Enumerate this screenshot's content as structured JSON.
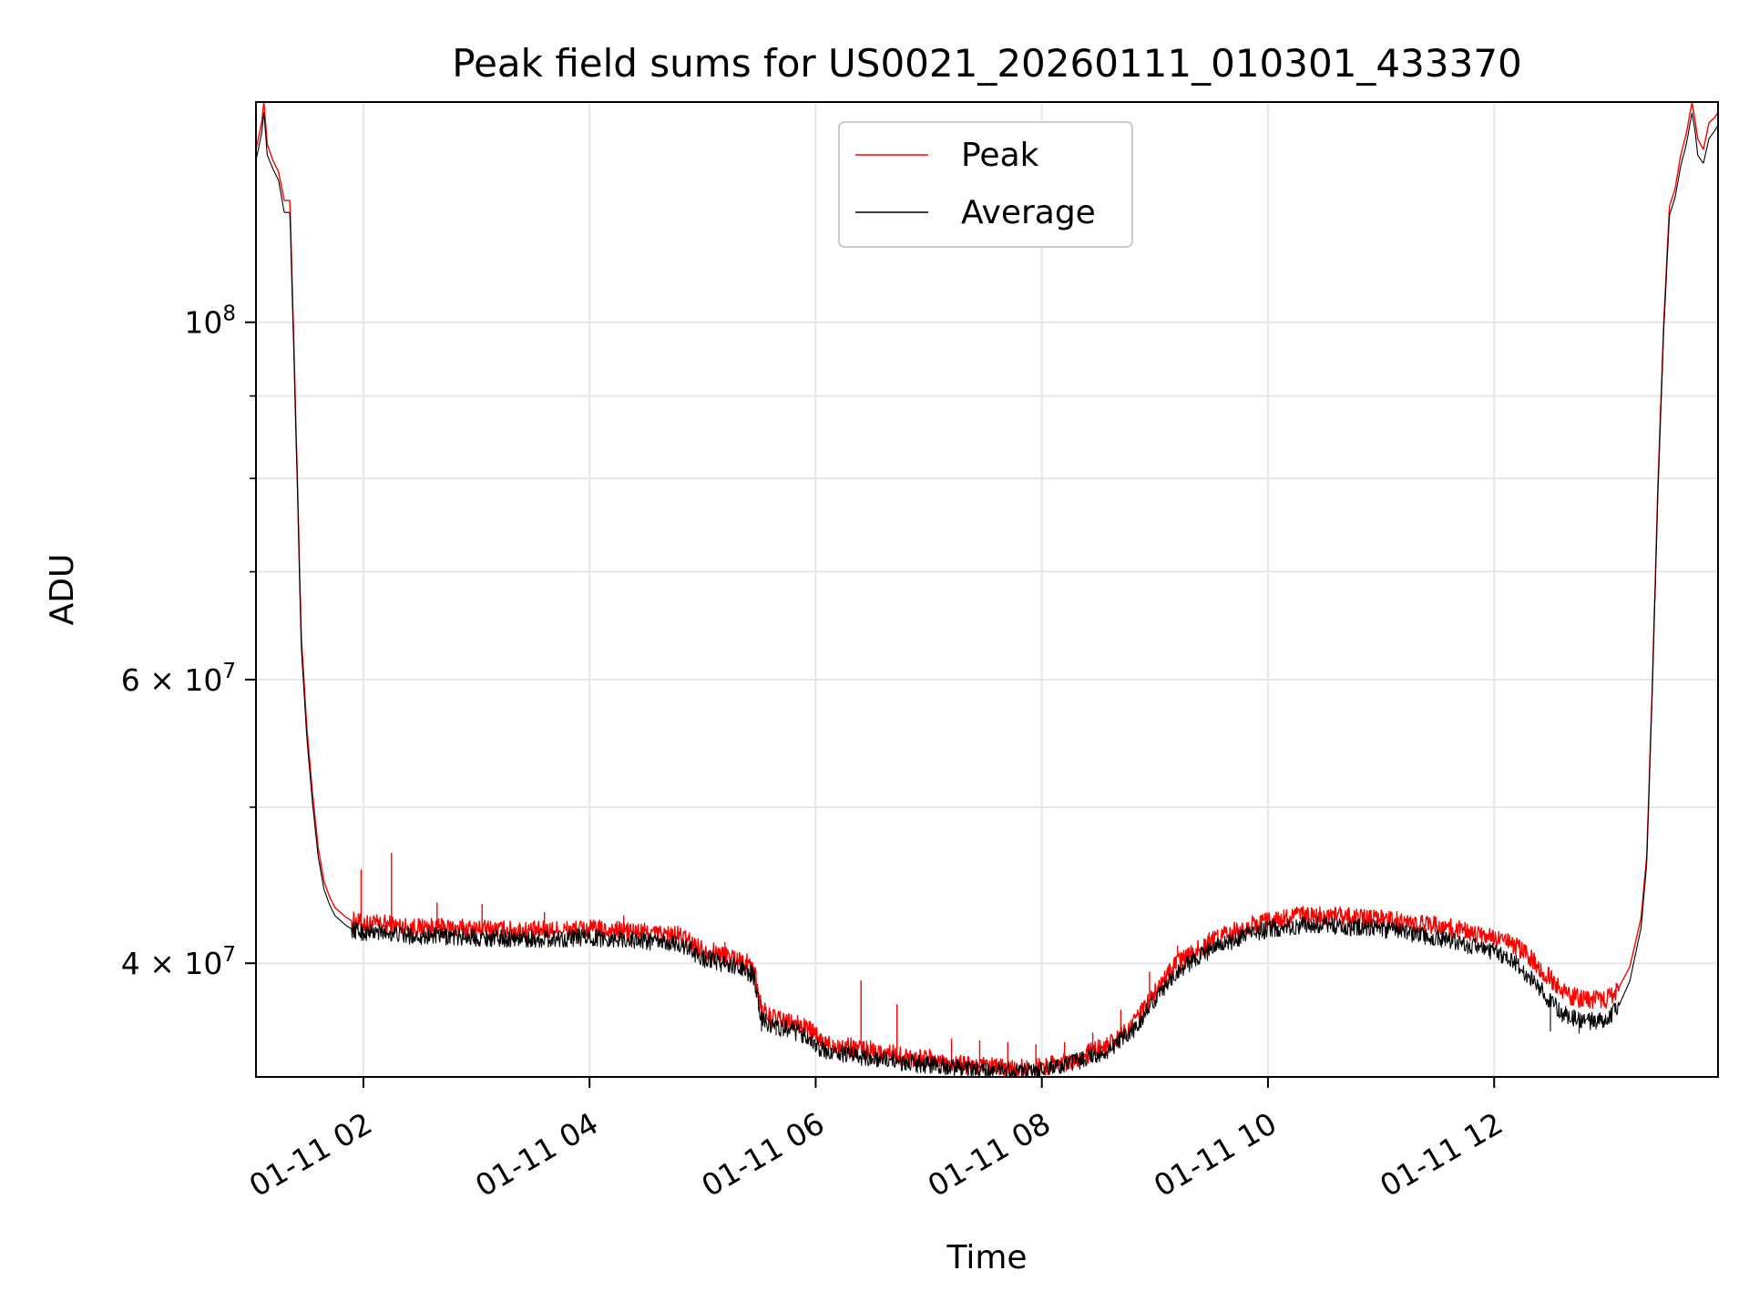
{
  "chart_data": {
    "type": "line",
    "title": "Peak field sums for US0021_20260111_010301_433370",
    "xlabel": "Time",
    "ylabel": "ADU",
    "y_scale": "log",
    "x_unit": "hours",
    "xlim": [
      1.05,
      13.98
    ],
    "ylim": [
      34000000,
      137000000
    ],
    "x_ticks": [
      {
        "value": 2,
        "label": "01-11 02"
      },
      {
        "value": 4,
        "label": "01-11 04"
      },
      {
        "value": 6,
        "label": "01-11 06"
      },
      {
        "value": 8,
        "label": "01-11 08"
      },
      {
        "value": 10,
        "label": "01-11 10"
      },
      {
        "value": 12,
        "label": "01-11 12"
      }
    ],
    "y_ticks": [
      {
        "value": 40000000,
        "label_base": "4 × 10",
        "label_exp": "7"
      },
      {
        "value": 60000000,
        "label_base": "6 × 10",
        "label_exp": "7"
      },
      {
        "value": 100000000,
        "label_base": "10",
        "label_exp": "8"
      }
    ],
    "y_minor_ticks": [
      50000000,
      70000000,
      80000000,
      90000000
    ],
    "grid": true,
    "legend_position": "top-center",
    "series": [
      {
        "name": "Peak",
        "color": "#ff0000",
        "x": [
          1.05,
          1.1,
          1.12,
          1.15,
          1.2,
          1.25,
          1.3,
          1.35,
          1.38,
          1.42,
          1.45,
          1.5,
          1.55,
          1.6,
          1.65,
          1.7,
          1.75,
          1.8,
          1.85,
          1.9,
          2.0,
          2.2,
          2.4,
          2.6,
          3.0,
          3.5,
          4.0,
          4.5,
          4.8,
          5.0,
          5.3,
          5.45,
          5.52,
          5.6,
          5.8,
          5.95,
          6.05,
          6.4,
          6.8,
          7.0,
          7.3,
          7.5,
          7.8,
          8.0,
          8.3,
          8.6,
          8.8,
          9.0,
          9.2,
          9.5,
          9.8,
          10.0,
          10.3,
          10.6,
          11.0,
          11.5,
          11.8,
          12.0,
          12.2,
          12.4,
          12.6,
          12.8,
          13.0,
          13.1,
          13.2,
          13.3,
          13.35,
          13.4,
          13.45,
          13.5,
          13.55,
          13.6,
          13.65,
          13.7,
          13.75,
          13.78,
          13.8,
          13.85,
          13.9,
          13.95,
          13.98
        ],
        "y": [
          128000000,
          133000000,
          137000000,
          129000000,
          126000000,
          124000000,
          119000000,
          119000000,
          100000000,
          78000000,
          64000000,
          56000000,
          51000000,
          47200000,
          45000000,
          44000000,
          43300000,
          43000000,
          42700000,
          42500000,
          42300000,
          42300000,
          42100000,
          42100000,
          42000000,
          41900000,
          42000000,
          41800000,
          41600000,
          40800000,
          40300000,
          39800000,
          37500000,
          37000000,
          36700000,
          36400000,
          35700000,
          35400000,
          35000000,
          34900000,
          34600000,
          34500000,
          34400000,
          34500000,
          34900000,
          35600000,
          36600000,
          38400000,
          40000000,
          41300000,
          42100000,
          42500000,
          42800000,
          42800000,
          42600000,
          42200000,
          41800000,
          41400000,
          41000000,
          39800000,
          38400000,
          37900000,
          38000000,
          38600000,
          39800000,
          42700000,
          46700000,
          60000000,
          80000000,
          100000000,
          118000000,
          121000000,
          127000000,
          131000000,
          137000000,
          133000000,
          130000000,
          128000000,
          133000000,
          134000000,
          135000000
        ],
        "spikes": [
          [
            1.98,
            45700000
          ],
          [
            2.25,
            46800000
          ],
          [
            2.65,
            43600000
          ],
          [
            3.05,
            43500000
          ],
          [
            3.6,
            43000000
          ],
          [
            4.3,
            42800000
          ],
          [
            5.2,
            41200000
          ],
          [
            6.4,
            39000000
          ],
          [
            6.72,
            37700000
          ],
          [
            7.2,
            35900000
          ],
          [
            7.45,
            35800000
          ],
          [
            7.7,
            35700000
          ],
          [
            7.95,
            35600000
          ],
          [
            8.2,
            35700000
          ],
          [
            8.45,
            36200000
          ],
          [
            8.7,
            37400000
          ],
          [
            8.95,
            39500000
          ],
          [
            9.2,
            41000000
          ]
        ],
        "spike_min_x": 1.9,
        "spike_max_x": 13.1,
        "spike_amp": 0.012,
        "line_width": 1.4
      },
      {
        "name": "Average",
        "color": "#000000",
        "x": [
          1.05,
          1.1,
          1.12,
          1.15,
          1.2,
          1.25,
          1.3,
          1.35,
          1.38,
          1.42,
          1.45,
          1.5,
          1.55,
          1.6,
          1.65,
          1.7,
          1.75,
          1.8,
          1.85,
          1.9,
          2.0,
          2.2,
          2.4,
          2.6,
          3.0,
          3.5,
          4.0,
          4.5,
          4.8,
          5.0,
          5.3,
          5.45,
          5.52,
          5.6,
          5.8,
          5.95,
          6.05,
          6.4,
          6.8,
          7.0,
          7.3,
          7.5,
          7.8,
          8.0,
          8.3,
          8.6,
          8.8,
          9.0,
          9.2,
          9.5,
          9.8,
          10.0,
          10.3,
          10.6,
          11.0,
          11.5,
          11.8,
          12.0,
          12.2,
          12.4,
          12.6,
          12.8,
          13.0,
          13.1,
          13.2,
          13.3,
          13.35,
          13.4,
          13.45,
          13.5,
          13.55,
          13.6,
          13.65,
          13.7,
          13.75,
          13.78,
          13.8,
          13.85,
          13.9,
          13.95,
          13.98
        ],
        "y": [
          126000000,
          131000000,
          135000000,
          127000000,
          124500000,
          122500000,
          117000000,
          117000000,
          98500000,
          77000000,
          63000000,
          55200000,
          50300000,
          46600000,
          44500000,
          43500000,
          42800000,
          42500000,
          42200000,
          42000000,
          41800000,
          41800000,
          41600000,
          41600000,
          41500000,
          41400000,
          41500000,
          41300000,
          41100000,
          40300000,
          39800000,
          39300000,
          37000000,
          36600000,
          36300000,
          36000000,
          35300000,
          35000000,
          34700000,
          34600000,
          34400000,
          34300000,
          34250000,
          34300000,
          34700000,
          35300000,
          36300000,
          38000000,
          39600000,
          40800000,
          41600000,
          42000000,
          42200000,
          42200000,
          42000000,
          41500000,
          41000000,
          40600000,
          40000000,
          38600000,
          37200000,
          36800000,
          36900000,
          37600000,
          39000000,
          42100000,
          46200000,
          59500000,
          79000000,
          99000000,
          116500000,
          119500000,
          125000000,
          129000000,
          135000000,
          131000000,
          127000000,
          125500000,
          130000000,
          131500000,
          132500000
        ],
        "spikes": [
          [
            5.52,
            36300000
          ],
          [
            5.65,
            36100000
          ],
          [
            6.05,
            35100000
          ],
          [
            6.3,
            34900000
          ],
          [
            6.55,
            34500000
          ],
          [
            6.9,
            34200000
          ],
          [
            7.35,
            34100000
          ],
          [
            12.5,
            36300000
          ],
          [
            12.75,
            36200000
          ],
          [
            12.9,
            36400000
          ]
        ],
        "spike_min_x": 1.9,
        "spike_max_x": 13.1,
        "spike_amp": 0.011,
        "line_width": 1.1
      }
    ]
  }
}
